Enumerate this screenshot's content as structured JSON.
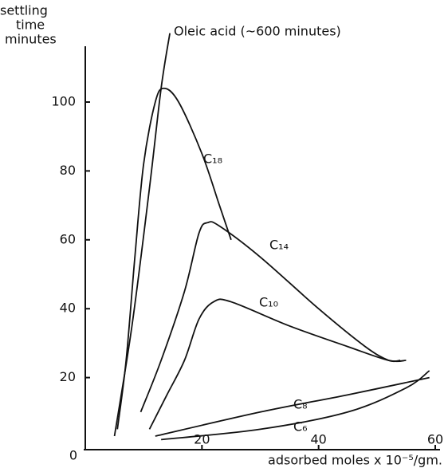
{
  "chart_data": {
    "type": "line",
    "y_label_lines": [
      "settling",
      "time",
      "minutes"
    ],
    "x_label": "adsorbed moles x 10⁻⁵/gm.",
    "xlim": [
      0,
      60
    ],
    "ylim": [
      0,
      120
    ],
    "xticks": [
      20,
      40,
      60
    ],
    "yticks": [
      0,
      20,
      40,
      60,
      80,
      100
    ],
    "series": [
      {
        "name": "Oleic acid (~600 minutes)",
        "color": "#111111",
        "x": [
          5,
          8,
          11,
          13,
          14.5
        ],
        "values": [
          3,
          35,
          75,
          104,
          120
        ]
      },
      {
        "name": "C₁₈",
        "color": "#111111",
        "x": [
          5.5,
          7,
          8.5,
          10,
          12,
          13.5,
          16,
          20,
          23,
          25
        ],
        "values": [
          5,
          25,
          55,
          82,
          100,
          104,
          100,
          85,
          70,
          60
        ]
      },
      {
        "name": "C₁₄",
        "color": "#111111",
        "x": [
          9.5,
          13,
          17,
          19.5,
          21,
          23,
          30,
          40,
          48,
          52,
          54
        ],
        "values": [
          10,
          25,
          45,
          62,
          65,
          64,
          55,
          40,
          29,
          25,
          25
        ]
      },
      {
        "name": "C₁₀",
        "color": "#111111",
        "x": [
          11,
          14,
          17,
          19.5,
          22,
          25,
          35,
          45,
          52,
          55
        ],
        "values": [
          5,
          15,
          25,
          37,
          42,
          42,
          35,
          29,
          25,
          25
        ]
      },
      {
        "name": "C₈",
        "color": "#111111",
        "x": [
          12,
          30,
          45,
          59
        ],
        "values": [
          3,
          10,
          15,
          20
        ]
      },
      {
        "name": "C₆",
        "color": "#111111",
        "x": [
          13,
          30,
          45,
          55,
          59
        ],
        "values": [
          2,
          5,
          10,
          17,
          22
        ]
      }
    ]
  }
}
